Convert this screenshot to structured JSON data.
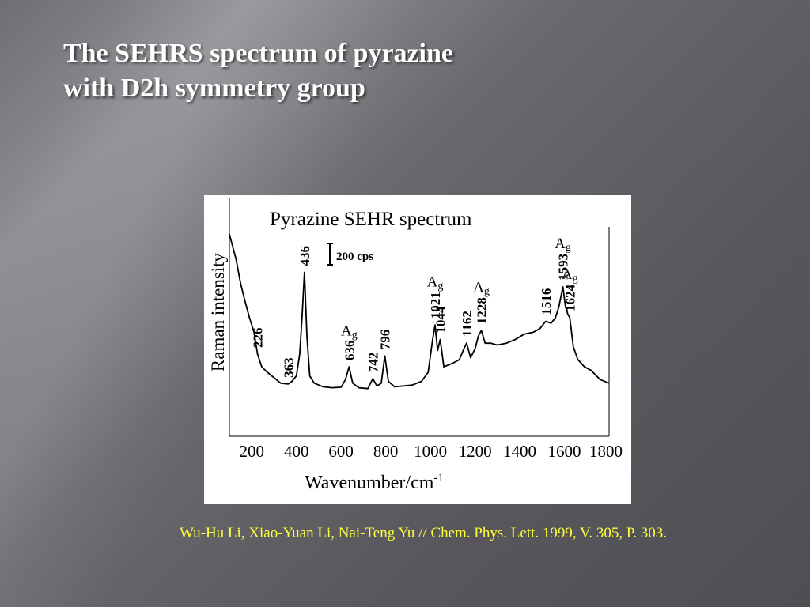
{
  "slide": {
    "title_line1": "The SEHRS spectrum of pyrazine",
    "title_line2": "with D2h symmetry group",
    "citation": "Wu-Hu Li, Xiao-Yuan Li, Nai-Teng Yu // Chem. Phys. Lett. 1999, V. 305, P. 303."
  },
  "colors": {
    "title": "#ffffff",
    "citation": "#ffff3a",
    "spectrum": "#000000",
    "figure_bg": "#ffffff"
  },
  "chart_data": {
    "type": "line",
    "title": "Pyrazine SEHR spectrum",
    "xlabel": "Wavenumber/cm",
    "xlabel_sup": "-1",
    "ylabel": "Raman intensity",
    "scale_bar_label": "200 cps",
    "scale_bar_value": 200,
    "xlim": [
      100,
      1800
    ],
    "ylim": [
      0,
      1000
    ],
    "xticks": [
      200,
      400,
      600,
      800,
      1000,
      1200,
      1400,
      1600,
      1800
    ],
    "grid": false,
    "series": [
      {
        "x": [
          100,
          130,
          150,
          170,
          190,
          210,
          226,
          245,
          270,
          300,
          330,
          363,
          380,
          400,
          415,
          425,
          436,
          447,
          460,
          480,
          520,
          560,
          600,
          620,
          636,
          652,
          680,
          720,
          742,
          760,
          780,
          796,
          812,
          840,
          880,
          920,
          960,
          990,
          1010,
          1021,
          1032,
          1044,
          1060,
          1080,
          1100,
          1130,
          1150,
          1162,
          1180,
          1200,
          1215,
          1228,
          1245,
          1270,
          1300,
          1340,
          1380,
          1420,
          1460,
          1490,
          1516,
          1540,
          1560,
          1575,
          1593,
          1605,
          1615,
          1624,
          1640,
          1660,
          1690,
          1720,
          1760,
          1800
        ],
        "y": [
          960,
          820,
          690,
          590,
          500,
          420,
          300,
          230,
          200,
          170,
          140,
          135,
          150,
          180,
          300,
          500,
          750,
          400,
          180,
          140,
          120,
          115,
          118,
          160,
          230,
          140,
          115,
          110,
          165,
          125,
          140,
          290,
          150,
          120,
          125,
          130,
          150,
          200,
          380,
          460,
          320,
          380,
          230,
          240,
          250,
          270,
          330,
          360,
          280,
          330,
          400,
          430,
          360,
          360,
          350,
          360,
          380,
          410,
          420,
          440,
          480,
          470,
          500,
          560,
          670,
          560,
          520,
          500,
          340,
          270,
          230,
          210,
          160,
          140
        ]
      }
    ],
    "peak_labels": [
      {
        "x": 226,
        "text": "226"
      },
      {
        "x": 363,
        "text": "363"
      },
      {
        "x": 436,
        "text": "436"
      },
      {
        "x": 636,
        "text": "636"
      },
      {
        "x": 742,
        "text": "742"
      },
      {
        "x": 796,
        "text": "796"
      },
      {
        "x": 1021,
        "text": "1021"
      },
      {
        "x": 1044,
        "text": "1044"
      },
      {
        "x": 1162,
        "text": "1162"
      },
      {
        "x": 1228,
        "text": "1228"
      },
      {
        "x": 1516,
        "text": "1516"
      },
      {
        "x": 1593,
        "text": "1593"
      },
      {
        "x": 1624,
        "text": "1624"
      }
    ],
    "symmetry_labels": [
      {
        "x": 636,
        "text": "Ag"
      },
      {
        "x": 1021,
        "text": "Ag"
      },
      {
        "x": 1228,
        "text": "Ag"
      },
      {
        "x": 1593,
        "text": "Ag"
      },
      {
        "x": 1624,
        "text": "Ag"
      }
    ]
  }
}
